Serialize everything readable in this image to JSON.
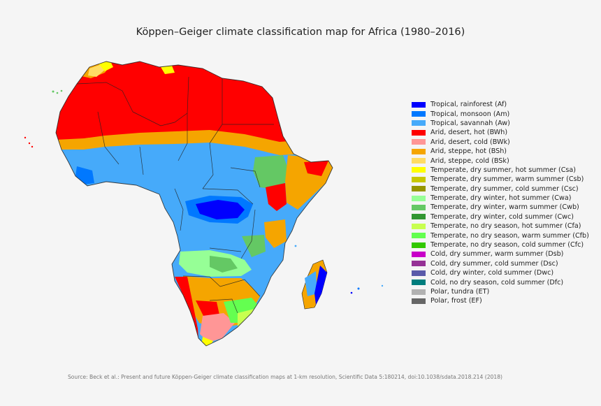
{
  "title": "Köppen–Geiger climate classification map for Africa (1980–2016)",
  "legend": [
    {
      "label": "Tropical, rainforest (Af)",
      "color": "#0000fe"
    },
    {
      "label": "Tropical, monsoon (Am)",
      "color": "#0078ff"
    },
    {
      "label": "Tropical, savannah (Aw)",
      "color": "#46aafa"
    },
    {
      "label": "Arid, desert, hot (BWh)",
      "color": "#ff0000"
    },
    {
      "label": "Arid, desert, cold (BWk)",
      "color": "#ff9696"
    },
    {
      "label": "Arid, steppe, hot (BSh)",
      "color": "#f5a500"
    },
    {
      "label": "Arid, steppe, cold (BSk)",
      "color": "#ffdc64"
    },
    {
      "label": "Temperate, dry summer, hot summer (Csa)",
      "color": "#ffff00"
    },
    {
      "label": "Temperate, dry summer, warm summer (Csb)",
      "color": "#c8c800"
    },
    {
      "label": "Temperate, dry summer, cold summer (Csc)",
      "color": "#969600"
    },
    {
      "label": "Temperate, dry winter, hot summer (Cwa)",
      "color": "#96ff96"
    },
    {
      "label": "Temperate, dry winter, warm summer (Cwb)",
      "color": "#64c864"
    },
    {
      "label": "Temperate, dry winter, cold summer (Cwc)",
      "color": "#329632"
    },
    {
      "label": "Temperate, no dry season, hot summer (Cfa)",
      "color": "#c8ff50"
    },
    {
      "label": "Temperate, no dry season, warm summer (Cfb)",
      "color": "#64ff50"
    },
    {
      "label": "Temperate, no dry season, cold summer (Cfc)",
      "color": "#32c800"
    },
    {
      "label": "Cold, dry summer, warm summer (Dsb)",
      "color": "#c800c8"
    },
    {
      "label": "Cold, dry summer, cold summer (Dsc)",
      "color": "#963296"
    },
    {
      "label": "Cold, dry winter, cold summer (Dwc)",
      "color": "#5a5aaa"
    },
    {
      "label": "Cold, no dry season, cold summer (Dfc)",
      "color": "#007d7d"
    },
    {
      "label": "Polar, tundra (ET)",
      "color": "#b2b2b2"
    },
    {
      "label": "Polar, frost (EF)",
      "color": "#666666"
    }
  ],
  "source": "Source: Beck et al.: Present and future Köppen-Geiger climate classification maps at 1-km resolution, Scientific Data 5:180214, doi:10.1038/sdata.2018.214 (2018)"
}
